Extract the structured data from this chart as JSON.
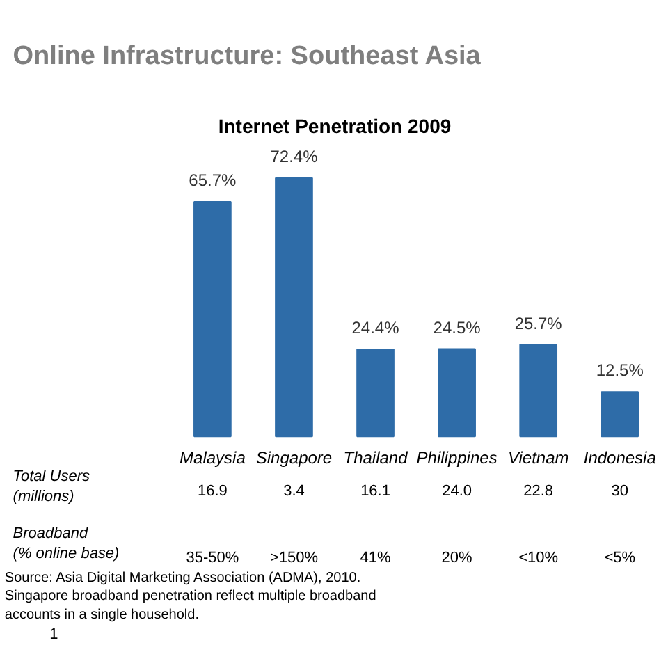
{
  "chart_data": {
    "type": "bar",
    "title": "Online Infrastructure: Southeast Asia",
    "subtitle": "Internet Penetration 2009",
    "categories": [
      "Malaysia",
      "Singapore",
      "Thailand",
      "Philippines",
      "Vietnam",
      "Indonesia"
    ],
    "values": [
      65.7,
      72.4,
      24.4,
      24.5,
      25.7,
      12.5
    ],
    "value_labels": [
      "65.7%",
      "72.4%",
      "24.4%",
      "24.5%",
      "25.7%",
      "12.5%"
    ],
    "color": "#2e6ca8",
    "grid": false,
    "annotations": [
      "Total Users\n(millions)",
      "16.9",
      "3.4",
      "16.1",
      "24.0",
      "22.8",
      "30",
      "Broadband\n(% online base)",
      "35-50%",
      ">150%",
      "41%",
      "20%",
      "<10%",
      "<5%",
      "Source: Asia Digital Marketing Association (ADMA), 2010.\nSingapore broadband penetration reflect multiple broadband\n accounts in a single household.",
      "1"
    ]
  }
}
